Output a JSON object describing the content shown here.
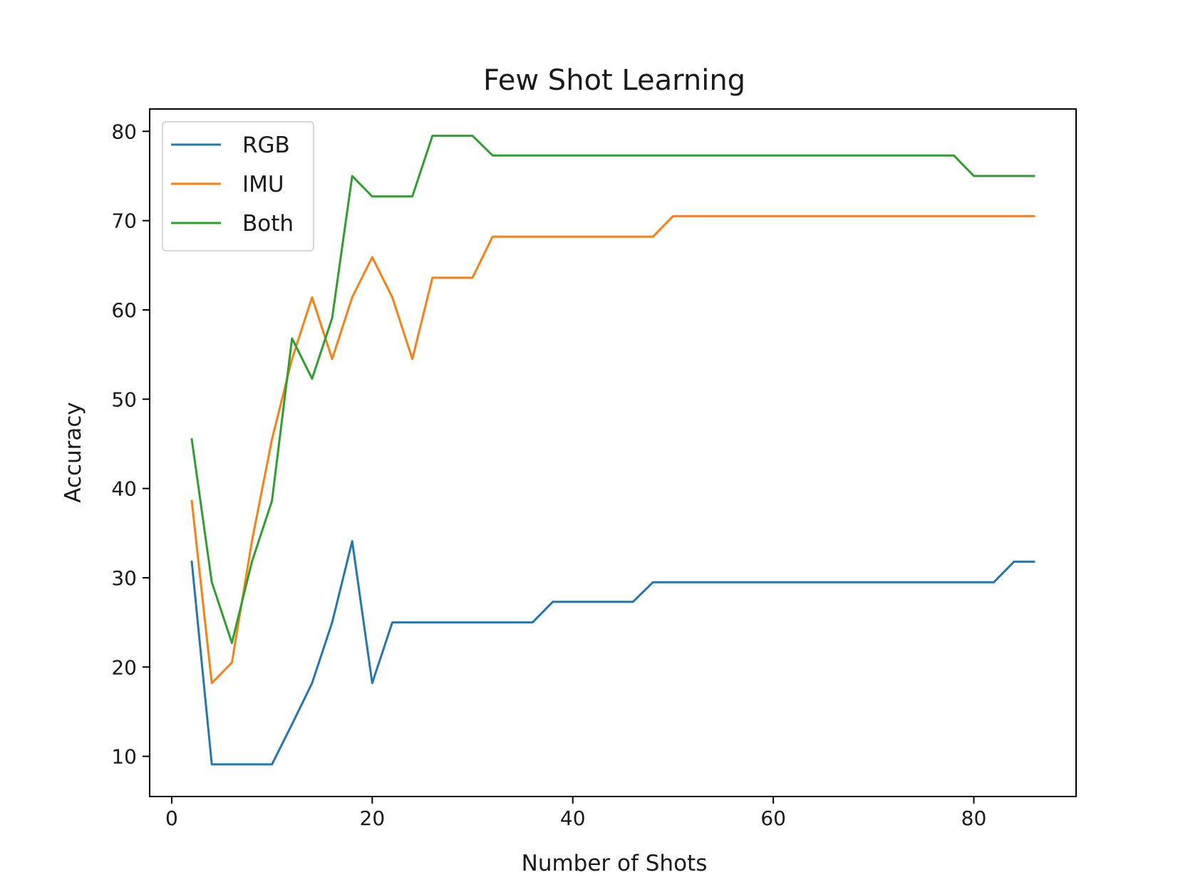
{
  "chart_data": {
    "type": "line",
    "title": "Few Shot Learning",
    "xlabel": "Number of Shots",
    "ylabel": "Accuracy",
    "xlim": [
      -2.2,
      90.2
    ],
    "ylim": [
      5.5,
      82.5
    ],
    "xticks": [
      0,
      20,
      40,
      60,
      80
    ],
    "yticks": [
      10,
      20,
      30,
      40,
      50,
      60,
      70,
      80
    ],
    "grid": false,
    "legend_position": "upper left",
    "x": [
      2,
      4,
      6,
      8,
      10,
      12,
      14,
      16,
      18,
      20,
      22,
      24,
      26,
      28,
      30,
      32,
      34,
      36,
      38,
      40,
      42,
      44,
      46,
      48,
      50,
      52,
      54,
      56,
      58,
      60,
      62,
      64,
      66,
      68,
      70,
      72,
      74,
      76,
      78,
      80,
      82,
      84,
      86
    ],
    "series": [
      {
        "name": "RGB",
        "color": "#1f77b4",
        "values": [
          31.8,
          9.1,
          9.1,
          9.1,
          9.1,
          13.6,
          18.2,
          25.0,
          34.1,
          18.2,
          25.0,
          25.0,
          25.0,
          25.0,
          25.0,
          25.0,
          25.0,
          25.0,
          27.3,
          27.3,
          27.3,
          27.3,
          27.3,
          29.5,
          29.5,
          29.5,
          29.5,
          29.5,
          29.5,
          29.5,
          29.5,
          29.5,
          29.5,
          29.5,
          29.5,
          29.5,
          29.5,
          29.5,
          29.5,
          29.5,
          29.5,
          31.8,
          31.8
        ]
      },
      {
        "name": "IMU",
        "color": "#ff7f0e",
        "values": [
          38.6,
          18.2,
          20.5,
          34.1,
          45.5,
          54.5,
          61.4,
          54.5,
          61.4,
          65.9,
          61.4,
          54.5,
          63.6,
          63.6,
          63.6,
          68.2,
          68.2,
          68.2,
          68.2,
          68.2,
          68.2,
          68.2,
          68.2,
          68.2,
          70.5,
          70.5,
          70.5,
          70.5,
          70.5,
          70.5,
          70.5,
          70.5,
          70.5,
          70.5,
          70.5,
          70.5,
          70.5,
          70.5,
          70.5,
          70.5,
          70.5,
          70.5,
          70.5
        ]
      },
      {
        "name": "Both",
        "color": "#2ca02c",
        "values": [
          45.5,
          29.5,
          22.7,
          31.8,
          38.6,
          56.8,
          52.3,
          59.1,
          75.0,
          72.7,
          72.7,
          72.7,
          79.5,
          79.5,
          79.5,
          77.3,
          77.3,
          77.3,
          77.3,
          77.3,
          77.3,
          77.3,
          77.3,
          77.3,
          77.3,
          77.3,
          77.3,
          77.3,
          77.3,
          77.3,
          77.3,
          77.3,
          77.3,
          77.3,
          77.3,
          77.3,
          77.3,
          77.3,
          77.3,
          75.0,
          75.0,
          75.0,
          75.0
        ]
      }
    ]
  }
}
